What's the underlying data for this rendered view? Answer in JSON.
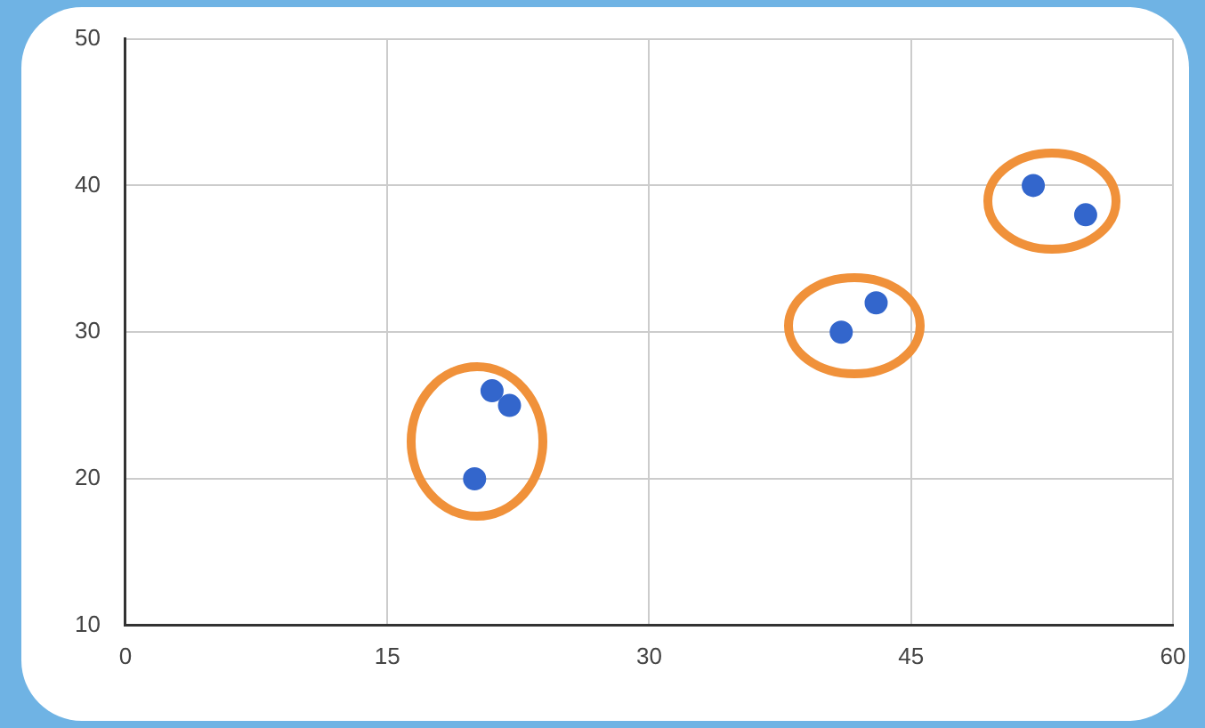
{
  "chart_data": {
    "type": "scatter",
    "x": [
      20,
      21,
      22,
      41,
      43,
      52,
      55
    ],
    "series": [
      {
        "color": "#3366cc",
        "values": [
          20,
          26,
          25,
          30,
          32,
          40,
          38
        ]
      }
    ],
    "xlim": [
      0,
      60
    ],
    "xticks": [
      0,
      15,
      30,
      45,
      60
    ],
    "ylim": [
      10,
      50
    ],
    "yticks": [
      10,
      20,
      30,
      40,
      50
    ],
    "grid": true,
    "legend": false,
    "marker": "circle"
  }
}
